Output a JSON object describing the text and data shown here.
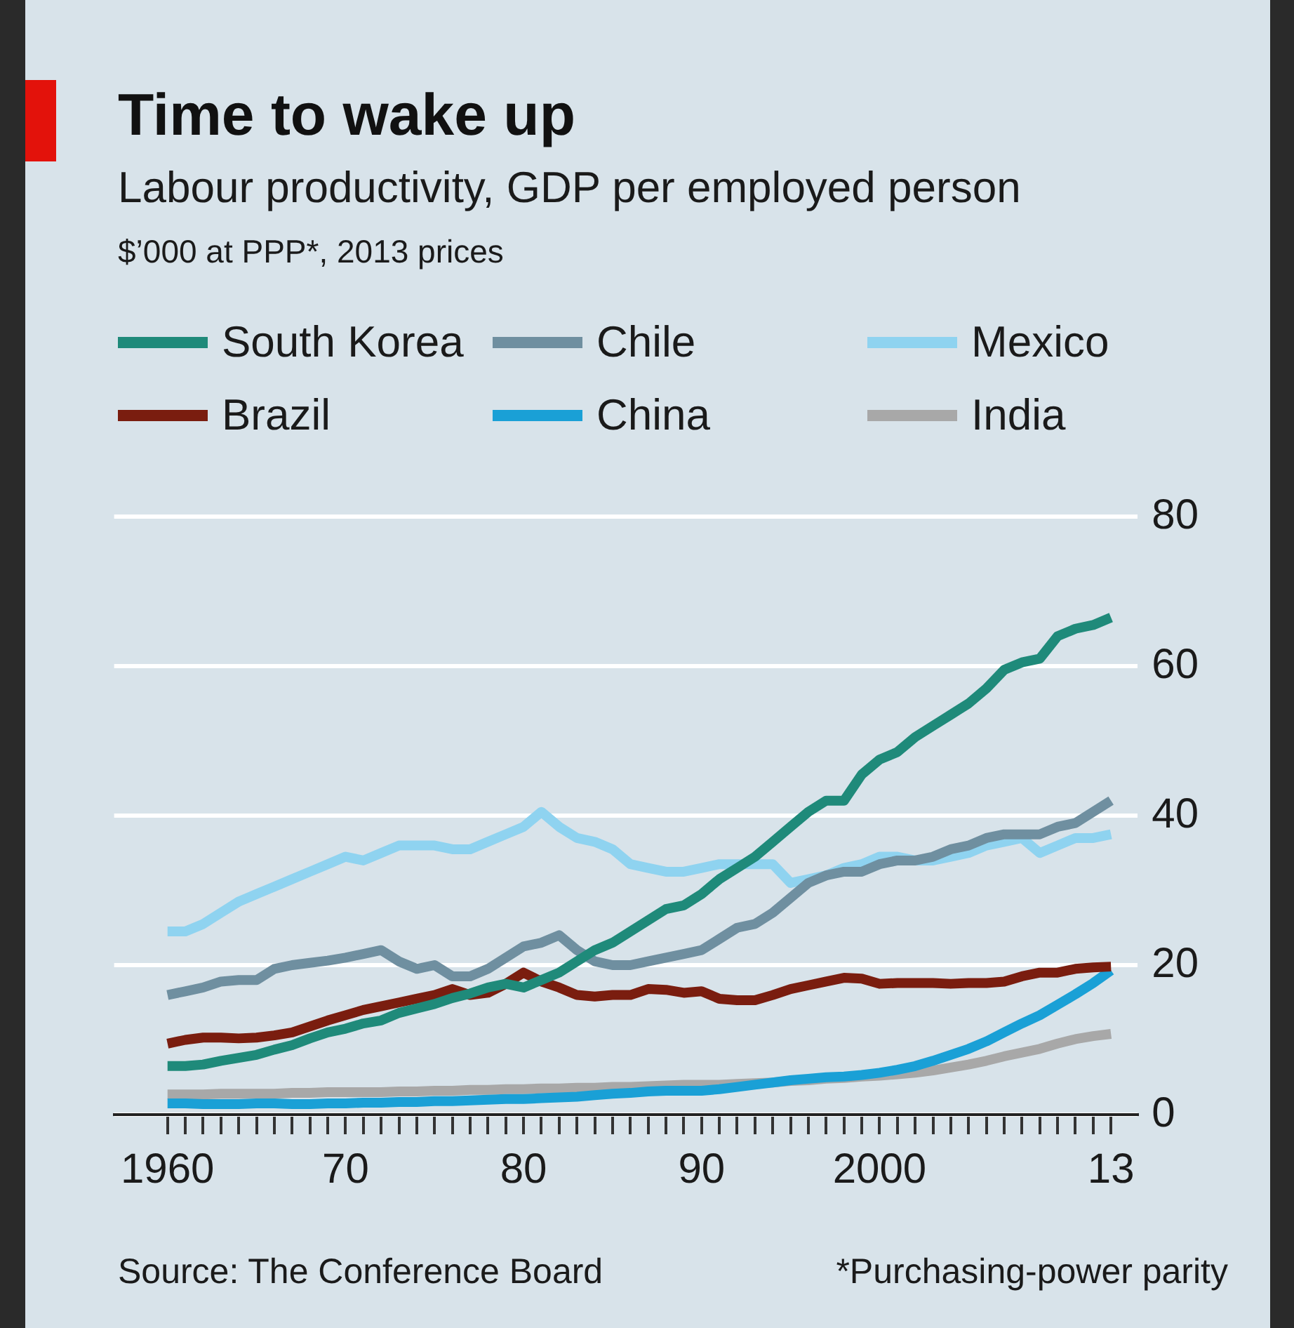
{
  "chart_data": {
    "type": "line",
    "title": "Time to wake up",
    "subtitle": "Labour productivity, GDP per employed person",
    "annotations": [
      "$’000 at PPP*, 2013 prices",
      "Source: The Conference Board",
      "*Purchasing-power parity"
    ],
    "x": [
      1960,
      1961,
      1962,
      1963,
      1964,
      1965,
      1966,
      1967,
      1968,
      1969,
      1970,
      1971,
      1972,
      1973,
      1974,
      1975,
      1976,
      1977,
      1978,
      1979,
      1980,
      1981,
      1982,
      1983,
      1984,
      1985,
      1986,
      1987,
      1988,
      1989,
      1990,
      1991,
      1992,
      1993,
      1994,
      1995,
      1996,
      1997,
      1998,
      1999,
      2000,
      2001,
      2002,
      2003,
      2004,
      2005,
      2006,
      2007,
      2008,
      2009,
      2010,
      2011,
      2012,
      2013
    ],
    "series": [
      {
        "name": "South Korea",
        "color": "#1f8a7a",
        "values": [
          6.5,
          6.5,
          6.7,
          7.2,
          7.6,
          8,
          8.7,
          9.3,
          10.2,
          11,
          11.5,
          12.2,
          12.6,
          13.6,
          14.2,
          14.8,
          15.6,
          16.2,
          17,
          17.5,
          17,
          18,
          19,
          20.5,
          22,
          23,
          24.5,
          26,
          27.5,
          28,
          29.5,
          31.5,
          33,
          34.5,
          36.5,
          38.5,
          40.5,
          42,
          42,
          45.5,
          47.5,
          48.5,
          50.5,
          52,
          53.5,
          55,
          57,
          59.5,
          60.5,
          61,
          64,
          65,
          65.5,
          66.5
        ]
      },
      {
        "name": "Brazil",
        "color": "#7a1d0f",
        "values": [
          9.5,
          10,
          10.3,
          10.3,
          10.2,
          10.3,
          10.6,
          11,
          11.8,
          12.6,
          13.3,
          14,
          14.5,
          15,
          15.5,
          16,
          16.8,
          16,
          16.3,
          17.5,
          19,
          17.8,
          17,
          16,
          15.8,
          16,
          16,
          16.8,
          16.7,
          16.3,
          16.5,
          15.5,
          15.3,
          15.3,
          16,
          16.8,
          17.3,
          17.8,
          18.3,
          18.2,
          17.5,
          17.6,
          17.6,
          17.6,
          17.5,
          17.6,
          17.6,
          17.8,
          18.5,
          19,
          19,
          19.5,
          19.7,
          19.8
        ]
      },
      {
        "name": "Chile",
        "color": "#6f8fa0",
        "values": [
          16,
          16.5,
          17,
          17.8,
          18,
          18,
          19.5,
          20,
          20.3,
          20.6,
          21,
          21.5,
          22,
          20.5,
          19.5,
          20,
          18.5,
          18.5,
          19.5,
          21,
          22.5,
          23,
          24,
          22,
          20.5,
          20,
          20,
          20.5,
          21,
          21.5,
          22,
          23.5,
          25,
          25.5,
          27,
          29,
          31,
          32,
          32.5,
          32.5,
          33.5,
          34,
          34,
          34.5,
          35.5,
          36,
          37,
          37.5,
          37.5,
          37.5,
          38.5,
          39,
          40.5,
          42
        ]
      },
      {
        "name": "China",
        "color": "#1aa0d6",
        "values": [
          1.5,
          1.5,
          1.4,
          1.4,
          1.4,
          1.5,
          1.5,
          1.4,
          1.4,
          1.5,
          1.5,
          1.6,
          1.6,
          1.7,
          1.7,
          1.8,
          1.8,
          1.9,
          2,
          2.1,
          2.1,
          2.2,
          2.3,
          2.4,
          2.6,
          2.8,
          2.9,
          3.1,
          3.2,
          3.2,
          3.2,
          3.4,
          3.7,
          4,
          4.3,
          4.6,
          4.8,
          5,
          5.1,
          5.3,
          5.6,
          6,
          6.5,
          7.2,
          8,
          8.8,
          9.8,
          11,
          12.2,
          13.3,
          14.7,
          16.1,
          17.6,
          19.3
        ]
      },
      {
        "name": "Mexico",
        "color": "#8fd3f0",
        "values": [
          24.5,
          24.5,
          25.5,
          27,
          28.5,
          29.5,
          30.5,
          31.5,
          32.5,
          33.5,
          34.5,
          34,
          35,
          36,
          36,
          36,
          35.5,
          35.5,
          36.5,
          37.5,
          38.5,
          40.5,
          38.5,
          37,
          36.5,
          35.5,
          33.5,
          33,
          32.5,
          32.5,
          33,
          33.5,
          33.5,
          33.5,
          33.5,
          31,
          31.5,
          32,
          33,
          33.5,
          34.5,
          34.5,
          34,
          34,
          34.5,
          35,
          36,
          36.5,
          37,
          35,
          36,
          37,
          37,
          37.5
        ]
      },
      {
        "name": "India",
        "color": "#a8a8a8",
        "values": [
          2.7,
          2.7,
          2.7,
          2.8,
          2.8,
          2.8,
          2.8,
          2.9,
          2.9,
          3,
          3,
          3,
          3,
          3.1,
          3.1,
          3.2,
          3.2,
          3.3,
          3.3,
          3.4,
          3.4,
          3.5,
          3.5,
          3.6,
          3.6,
          3.7,
          3.7,
          3.8,
          3.9,
          4,
          4,
          4,
          4.1,
          4.2,
          4.3,
          4.5,
          4.6,
          4.8,
          4.9,
          5.1,
          5.2,
          5.4,
          5.6,
          5.9,
          6.3,
          6.7,
          7.2,
          7.8,
          8.3,
          8.8,
          9.5,
          10.1,
          10.5,
          10.8
        ]
      }
    ],
    "xlim": [
      1957,
      2014.5
    ],
    "xticks": [
      1960,
      {
        "value": 1961,
        "label": null
      },
      {
        "value": 1962,
        "label": null
      },
      {
        "value": 1963,
        "label": null
      },
      {
        "value": 1964,
        "label": null
      },
      {
        "value": 1965,
        "label": null
      },
      {
        "value": 1966,
        "label": null
      },
      {
        "value": 1967,
        "label": null
      },
      {
        "value": 1968,
        "label": null
      },
      {
        "value": 1969,
        "label": null
      },
      {
        "value": 1970,
        "label": "70"
      },
      {
        "value": 1971,
        "label": null
      },
      {
        "value": 1972,
        "label": null
      },
      {
        "value": 1973,
        "label": null
      },
      {
        "value": 1974,
        "label": null
      },
      {
        "value": 1975,
        "label": null
      },
      {
        "value": 1976,
        "label": null
      },
      {
        "value": 1977,
        "label": null
      },
      {
        "value": 1978,
        "label": null
      },
      {
        "value": 1979,
        "label": null
      },
      {
        "value": 1980,
        "label": "80"
      },
      {
        "value": 1981,
        "label": null
      },
      {
        "value": 1982,
        "label": null
      },
      {
        "value": 1983,
        "label": null
      },
      {
        "value": 1984,
        "label": null
      },
      {
        "value": 1985,
        "label": null
      },
      {
        "value": 1986,
        "label": null
      },
      {
        "value": 1987,
        "label": null
      },
      {
        "value": 1988,
        "label": null
      },
      {
        "value": 1989,
        "label": null
      },
      {
        "value": 1990,
        "label": "90"
      },
      {
        "value": 1991,
        "label": null
      },
      {
        "value": 1992,
        "label": null
      },
      {
        "value": 1993,
        "label": null
      },
      {
        "value": 1994,
        "label": null
      },
      {
        "value": 1995,
        "label": null
      },
      {
        "value": 1996,
        "label": null
      },
      {
        "value": 1997,
        "label": null
      },
      {
        "value": 1998,
        "label": null
      },
      {
        "value": 1999,
        "label": null
      },
      2000,
      {
        "value": 2001,
        "label": null
      },
      {
        "value": 2002,
        "label": null
      },
      {
        "value": 2003,
        "label": null
      },
      {
        "value": 2004,
        "label": null
      },
      {
        "value": 2005,
        "label": null
      },
      {
        "value": 2006,
        "label": null
      },
      {
        "value": 2007,
        "label": null
      },
      {
        "value": 2008,
        "label": null
      },
      {
        "value": 2009,
        "label": null
      },
      {
        "value": 2010,
        "label": null
      },
      {
        "value": 2011,
        "label": null
      },
      {
        "value": 2012,
        "label": null
      },
      {
        "value": 2013,
        "label": "13"
      }
    ],
    "ylim": [
      0,
      80
    ],
    "yticks": [
      0,
      20,
      40,
      60,
      80
    ],
    "grid": "y",
    "legend": "top",
    "line_style": "solid",
    "marker": "none"
  }
}
